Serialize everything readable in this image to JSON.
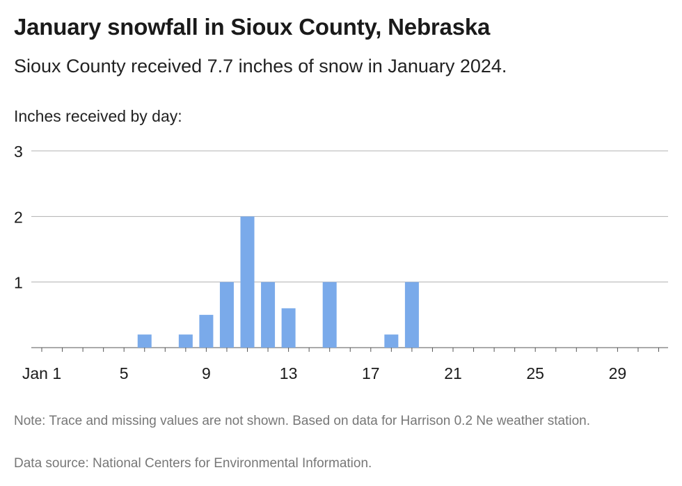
{
  "title": "January snowfall in Sioux County, Nebraska",
  "subtitle": "Sioux County received 7.7 inches of snow in January 2024.",
  "note": "Note: Trace and missing values are not shown. Based on data for Harrison 0.2 Ne weather station.",
  "source": "Data source: National Centers for Environmental Information.",
  "colors": {
    "bar": "#7aaaea",
    "grid": "#b0b0b0",
    "text": "#1a1a1a"
  },
  "chart_data": {
    "type": "bar",
    "ylabel": "Inches received by day:",
    "xlim": [
      1,
      31
    ],
    "ylim": [
      0,
      3
    ],
    "yticks": [
      1,
      2,
      3
    ],
    "xticks": [
      {
        "value": 1,
        "label": "Jan 1"
      },
      {
        "value": 5,
        "label": "5"
      },
      {
        "value": 9,
        "label": "9"
      },
      {
        "value": 13,
        "label": "13"
      },
      {
        "value": 17,
        "label": "17"
      },
      {
        "value": 21,
        "label": "21"
      },
      {
        "value": 25,
        "label": "25"
      },
      {
        "value": 29,
        "label": "29"
      }
    ],
    "x": [
      6,
      8,
      9,
      10,
      11,
      12,
      13,
      15,
      18,
      19
    ],
    "values": [
      0.2,
      0.2,
      0.5,
      1.0,
      2.0,
      1.0,
      0.6,
      1.0,
      0.2,
      1.0
    ],
    "grid": true
  }
}
